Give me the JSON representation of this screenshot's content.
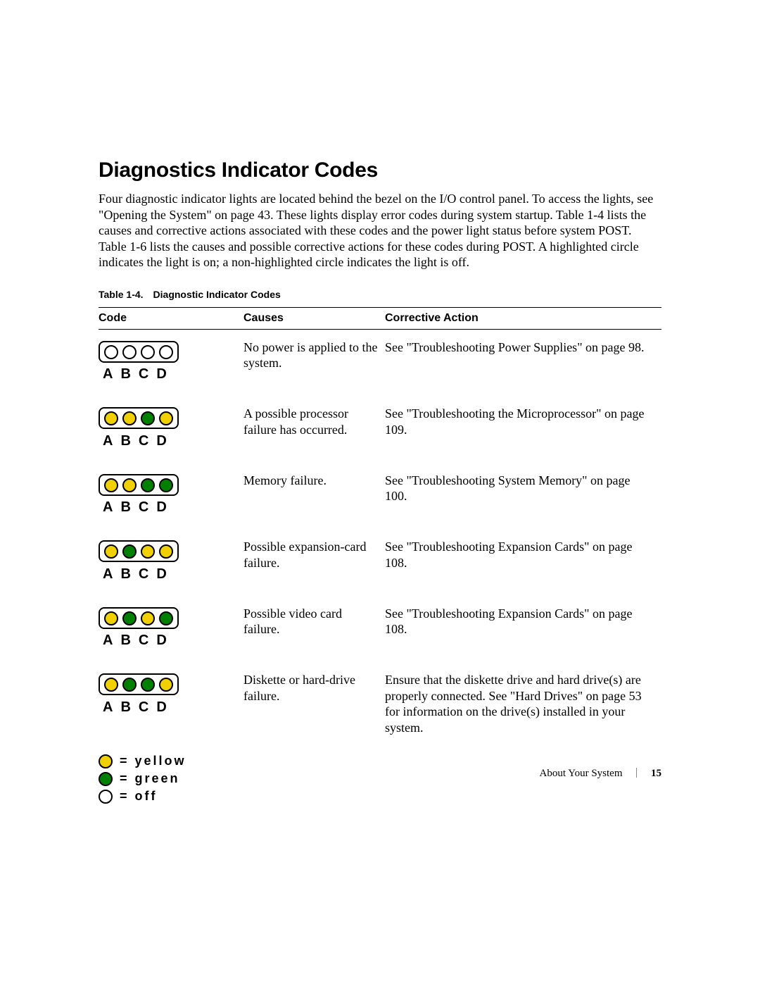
{
  "heading": "Diagnostics Indicator Codes",
  "intro": "Four diagnostic indicator lights are located behind the bezel on the I/O control panel. To access the lights, see \"Opening the System\" on page 43. These lights display error codes during system startup. Table 1-4 lists the causes and corrective actions associated with these codes and the power light status before system POST. Table 1-6 lists the causes and possible corrective actions for these codes during POST. A highlighted circle indicates the light is on; a non-highlighted circle indicates the light is off.",
  "tableCaption": "Table 1-4. Diagnostic Indicator Codes",
  "columns": {
    "code": "Code",
    "causes": "Causes",
    "action": "Corrective Action"
  },
  "letters": "ABCD",
  "colors": {
    "yellow": "#f0d000",
    "green": "#008000",
    "off": "#ffffff",
    "border": "#000000"
  },
  "rows": [
    {
      "leds": [
        "off",
        "off",
        "off",
        "off"
      ],
      "cause": "No power is applied to the system.",
      "action": "See \"Troubleshooting Power Supplies\" on page 98."
    },
    {
      "leds": [
        "yellow",
        "yellow",
        "green",
        "yellow"
      ],
      "cause": "A possible processor failure has occurred.",
      "action": "See \"Troubleshooting the Microprocessor\" on page 109."
    },
    {
      "leds": [
        "yellow",
        "yellow",
        "green",
        "green"
      ],
      "cause": "Memory failure.",
      "action": "See \"Troubleshooting System Memory\" on page 100."
    },
    {
      "leds": [
        "yellow",
        "green",
        "yellow",
        "yellow"
      ],
      "cause": "Possible expansion-card failure.",
      "action": "See \"Troubleshooting Expansion Cards\" on page 108."
    },
    {
      "leds": [
        "yellow",
        "green",
        "yellow",
        "green"
      ],
      "cause": "Possible video card failure.",
      "action": "See \"Troubleshooting Expansion Cards\" on page 108."
    },
    {
      "leds": [
        "yellow",
        "green",
        "green",
        "yellow"
      ],
      "cause": "Diskette or hard-drive failure.",
      "action": "Ensure that the diskette drive and hard drive(s) are properly connected. See \"Hard Drives\" on page 53 for information on the drive(s) installed in your system."
    }
  ],
  "legend": [
    {
      "state": "yellow",
      "label": "= yellow"
    },
    {
      "state": "green",
      "label": "= green"
    },
    {
      "state": "off",
      "label": "= off"
    }
  ],
  "footer": {
    "section": "About Your System",
    "page": "15"
  }
}
